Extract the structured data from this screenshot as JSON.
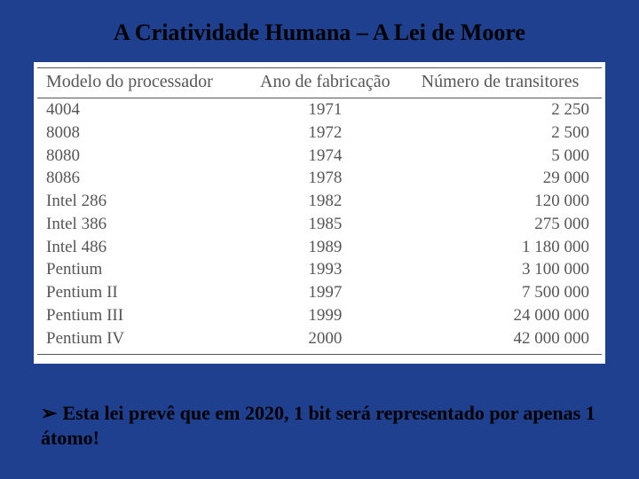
{
  "title": "A Criatividade Humana – A Lei de Moore",
  "table": {
    "background_color": "#ffffff",
    "text_color": "#565658",
    "border_color": "#555555",
    "columns": [
      "Modelo do processador",
      "Ano de fabricação",
      "Número de transitores"
    ],
    "rows": [
      [
        "4004",
        "1971",
        "2 250"
      ],
      [
        "8008",
        "1972",
        "2 500"
      ],
      [
        "8080",
        "1974",
        "5 000"
      ],
      [
        "8086",
        "1978",
        "29 000"
      ],
      [
        "Intel 286",
        "1982",
        "120 000"
      ],
      [
        "Intel 386",
        "1985",
        "275 000"
      ],
      [
        "Intel 486",
        "1989",
        "1 180 000"
      ],
      [
        "Pentium",
        "1993",
        "3 100 000"
      ],
      [
        "Pentium II",
        "1997",
        "7 500 000"
      ],
      [
        "Pentium III",
        "1999",
        "24 000 000"
      ],
      [
        "Pentium IV",
        "2000",
        "42 000 000"
      ]
    ]
  },
  "bullet": {
    "glyph": "➢",
    "text": "Esta lei prevê que em 2020, 1 bit será representado por apenas 1 átomo!"
  },
  "slide_background": "#1f3f8f"
}
